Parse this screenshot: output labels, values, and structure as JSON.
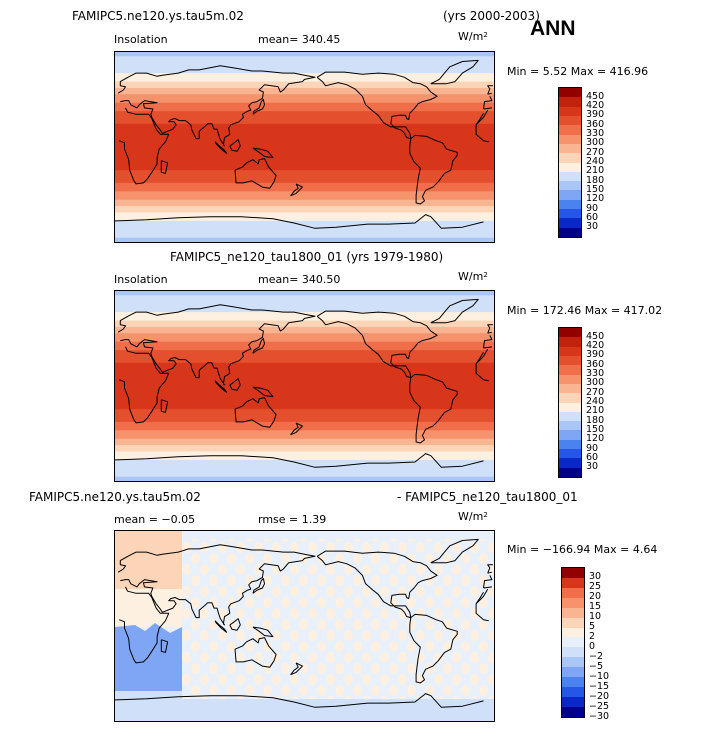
{
  "header": {
    "case1_name": "FAMIPC5.ne120.ys.tau5m.02",
    "case1_years": "(yrs 2000-2003)",
    "season": "ANN"
  },
  "colors": {
    "insolation_scale": [
      "#00008b",
      "#0a28c8",
      "#2556e6",
      "#4a82f0",
      "#7ea6f4",
      "#a9c6f6",
      "#cfe0f8",
      "#fdf0e0",
      "#fcd5b8",
      "#f9b592",
      "#f6926c",
      "#f06e49",
      "#e4502e",
      "#d8361b",
      "#c0220c",
      "#930000"
    ],
    "difference_scale": [
      "#00008b",
      "#0a28c8",
      "#2556e6",
      "#4a82f0",
      "#7ea6f4",
      "#a9c6f6",
      "#cfe0f8",
      "#e8f0fb",
      "#fdf0e0",
      "#fcd5b8",
      "#f9b592",
      "#f6926c",
      "#f06e49",
      "#d8361b",
      "#930000"
    ]
  },
  "panels": [
    {
      "id": "top",
      "title": "",
      "variable": "Insolation",
      "mean_text": "mean= 340.45",
      "units": "W/m",
      "units_sup": "2",
      "minmax": "Min =   5.52 Max = 416.96",
      "colorbar_labels": [
        "450",
        "420",
        "390",
        "360",
        "330",
        "300",
        "270",
        "240",
        "210",
        "180",
        "150",
        "120",
        "90",
        "60",
        "30"
      ]
    },
    {
      "id": "middle",
      "title": "FAMIPC5_ne120_tau1800_01 (yrs 1979-1980)",
      "variable": "Insolation",
      "mean_text": "mean= 340.50",
      "units": "W/m",
      "units_sup": "2",
      "minmax": "Min = 172.46 Max = 417.02",
      "colorbar_labels": [
        "450",
        "420",
        "390",
        "360",
        "330",
        "300",
        "270",
        "240",
        "210",
        "180",
        "150",
        "120",
        "90",
        "60",
        "30"
      ]
    },
    {
      "id": "bottom",
      "title_left": "FAMIPC5.ne120.ys.tau5m.02",
      "title_right": "- FAMIPC5_ne120_tau1800_01",
      "mean_text": "mean =   −0.05",
      "rmse_text": "rmse =    1.39",
      "units": "W/m",
      "units_sup": "2",
      "minmax": "Min = −166.94 Max =   4.64",
      "colorbar_labels": [
        "30",
        "25",
        "20",
        "15",
        "10",
        "5",
        "2",
        "0",
        "−2",
        "−5",
        "−10",
        "−15",
        "−20",
        "−25",
        "−30"
      ]
    }
  ],
  "chart_data": [
    {
      "type": "heatmap",
      "title": "Insolation",
      "subtitle": "FAMIPC5.ne120.ys.tau5m.02 (yrs 2000-2003)",
      "statistics": {
        "mean": 340.45,
        "min": 5.52,
        "max": 416.96
      },
      "units": "W/m2",
      "colorbar": {
        "levels": [
          30,
          60,
          90,
          120,
          150,
          180,
          210,
          240,
          270,
          300,
          330,
          360,
          390,
          420,
          450
        ]
      },
      "x": {
        "quantity": "longitude",
        "range": [
          0,
          360
        ]
      },
      "y": {
        "quantity": "latitude",
        "range": [
          -90,
          90
        ]
      },
      "zonal_profile": [
        {
          "lat": -90,
          "value": 175
        },
        {
          "lat": -75,
          "value": 195
        },
        {
          "lat": -60,
          "value": 250
        },
        {
          "lat": -45,
          "value": 320
        },
        {
          "lat": -30,
          "value": 375
        },
        {
          "lat": -15,
          "value": 405
        },
        {
          "lat": 0,
          "value": 416
        },
        {
          "lat": 15,
          "value": 405
        },
        {
          "lat": 30,
          "value": 375
        },
        {
          "lat": 45,
          "value": 320
        },
        {
          "lat": 60,
          "value": 250
        },
        {
          "lat": 75,
          "value": 195
        },
        {
          "lat": 90,
          "value": 175
        }
      ]
    },
    {
      "type": "heatmap",
      "title": "Insolation",
      "subtitle": "FAMIPC5_ne120_tau1800_01 (yrs 1979-1980)",
      "statistics": {
        "mean": 340.5,
        "min": 172.46,
        "max": 417.02
      },
      "units": "W/m2",
      "colorbar": {
        "levels": [
          30,
          60,
          90,
          120,
          150,
          180,
          210,
          240,
          270,
          300,
          330,
          360,
          390,
          420,
          450
        ]
      },
      "x": {
        "quantity": "longitude",
        "range": [
          0,
          360
        ]
      },
      "y": {
        "quantity": "latitude",
        "range": [
          -90,
          90
        ]
      },
      "zonal_profile": [
        {
          "lat": -90,
          "value": 175
        },
        {
          "lat": -75,
          "value": 195
        },
        {
          "lat": -60,
          "value": 250
        },
        {
          "lat": -45,
          "value": 320
        },
        {
          "lat": -30,
          "value": 375
        },
        {
          "lat": -15,
          "value": 405
        },
        {
          "lat": 0,
          "value": 416
        },
        {
          "lat": 15,
          "value": 405
        },
        {
          "lat": 30,
          "value": 375
        },
        {
          "lat": 45,
          "value": 320
        },
        {
          "lat": 60,
          "value": 250
        },
        {
          "lat": 75,
          "value": 195
        },
        {
          "lat": 90,
          "value": 175
        }
      ]
    },
    {
      "type": "heatmap",
      "title": "FAMIPC5.ne120.ys.tau5m.02 - FAMIPC5_ne120_tau1800_01",
      "statistics": {
        "mean": -0.05,
        "rmse": 1.39,
        "min": -166.94,
        "max": 4.64
      },
      "units": "W/m2",
      "colorbar": {
        "levels": [
          -30,
          -25,
          -20,
          -15,
          -10,
          -5,
          -2,
          0,
          2,
          5,
          10,
          15,
          20,
          25,
          30
        ]
      },
      "x": {
        "quantity": "longitude",
        "range": [
          0,
          360
        ]
      },
      "y": {
        "quantity": "latitude",
        "range": [
          -90,
          90
        ]
      }
    }
  ]
}
